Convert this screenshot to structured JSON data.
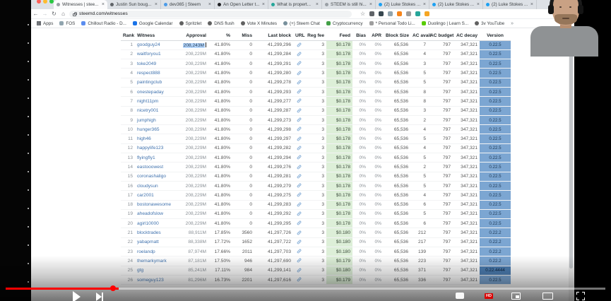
{
  "browser": {
    "tabs": [
      {
        "label": "Witnesses | stee...",
        "color": "#9aa0a6",
        "active": true
      },
      {
        "label": "Justin Sun boug...",
        "color": "#5f6368",
        "active": false
      },
      {
        "label": "dev365 | Steem",
        "color": "#4c9be8",
        "active": false
      },
      {
        "label": "An Open Letter t...",
        "color": "#202124",
        "active": false
      },
      {
        "label": "What is propert...",
        "color": "#26a69a",
        "active": false
      },
      {
        "label": "STEEM is still hi...",
        "color": "#9aa0a6",
        "active": false
      },
      {
        "label": "(2) Luke Stokes ...",
        "color": "#1da1f2",
        "active": false
      },
      {
        "label": "(2) Luke Stokes ...",
        "color": "#1da1f2",
        "active": false
      },
      {
        "label": "(2) Luke Stokes ...",
        "color": "#1da1f2",
        "active": false
      }
    ],
    "nav": {
      "url": "steemd.com/witnesses"
    },
    "extensions": [
      {
        "name": "eye-extension-icon",
        "color": "#5f6368"
      },
      {
        "name": "v-extension-icon",
        "color": "#37474f"
      },
      {
        "name": "bird-extension-icon",
        "color": "#90a4ae"
      },
      {
        "name": "fox-extension-icon",
        "color": "#f6851b"
      },
      {
        "name": "gray-extension-icon",
        "color": "#9e9e9e"
      },
      {
        "name": "teal-extension-icon",
        "color": "#26a69a"
      },
      {
        "name": "yellow-extension-icon",
        "color": "#f5a623"
      }
    ],
    "bookmarks": [
      {
        "label": "Apps",
        "icon": "grid",
        "color": "#5f6368"
      },
      {
        "label": "FOS",
        "icon": "square",
        "color": "#90a4ae"
      },
      {
        "label": "Chillout Radio - D...",
        "icon": "square",
        "color": "#5b8def"
      },
      {
        "label": "Google Calendar",
        "icon": "square",
        "color": "#1a73e8"
      },
      {
        "label": "Spritzlet",
        "icon": "globe",
        "color": "#616161"
      },
      {
        "label": "DNS flush",
        "icon": "globe",
        "color": "#616161"
      },
      {
        "label": "Vote X Minutes",
        "icon": "globe",
        "color": "#616161"
      },
      {
        "label": "(+) Steem Chat",
        "icon": "globe",
        "color": "#78909c"
      },
      {
        "label": "Cryptocurrency",
        "icon": "square",
        "color": "#43a047"
      },
      {
        "label": "* Personal Todo Li...",
        "icon": "square",
        "color": "#9e9e9e"
      },
      {
        "label": "Duolingo | Learn S...",
        "icon": "square",
        "color": "#58cc02"
      },
      {
        "label": "3v YouTube",
        "icon": "globe",
        "color": "#616161"
      }
    ]
  },
  "table": {
    "columns": [
      "Rank",
      "Witness",
      "Approval",
      "%",
      "Miss",
      "Last block",
      "URL",
      "Reg fee",
      "Feed",
      "Bias",
      "APR",
      "Block Size",
      "AC avail",
      "AC budget",
      "AC decay",
      "Version"
    ],
    "rows": [
      {
        "rank": "1",
        "witness": "goodguy24",
        "approval": "208,243M",
        "pct": "41.80%",
        "miss": "0",
        "last_block": "41,299,296",
        "reg_fee": "3",
        "feed": "$0.178",
        "bias": "0%",
        "apr": "0%",
        "block_size": "65,536",
        "ac_avail": "7",
        "ac_budget": "797",
        "ac_decay": "347,321",
        "version": "0.22.5",
        "selected": true
      },
      {
        "rank": "2",
        "witness": "waitforyou1",
        "approval": "208,229M",
        "pct": "41.80%",
        "miss": "0",
        "last_block": "41,299,284",
        "reg_fee": "3",
        "feed": "$0.178",
        "bias": "0%",
        "apr": "0%",
        "block_size": "65,536",
        "ac_avail": "4",
        "ac_budget": "797",
        "ac_decay": "347,321",
        "version": "0.22.5"
      },
      {
        "rank": "3",
        "witness": "toke2049",
        "approval": "208,229M",
        "pct": "41.80%",
        "miss": "0",
        "last_block": "41,299,291",
        "reg_fee": "3",
        "feed": "$0.178",
        "bias": "0%",
        "apr": "0%",
        "block_size": "65,536",
        "ac_avail": "3",
        "ac_budget": "797",
        "ac_decay": "347,321",
        "version": "0.22.5"
      },
      {
        "rank": "4",
        "witness": "respect888",
        "approval": "208,229M",
        "pct": "41.80%",
        "miss": "0",
        "last_block": "41,299,280",
        "reg_fee": "3",
        "feed": "$0.178",
        "bias": "0%",
        "apr": "0%",
        "block_size": "65,536",
        "ac_avail": "5",
        "ac_budget": "797",
        "ac_decay": "347,321",
        "version": "0.22.5"
      },
      {
        "rank": "5",
        "witness": "paintingclub",
        "approval": "208,229M",
        "pct": "41.80%",
        "miss": "0",
        "last_block": "41,299,278",
        "reg_fee": "3",
        "feed": "$0.178",
        "bias": "0%",
        "apr": "0%",
        "block_size": "65,536",
        "ac_avail": "5",
        "ac_budget": "797",
        "ac_decay": "347,321",
        "version": "0.22.5"
      },
      {
        "rank": "6",
        "witness": "onestepaday",
        "approval": "208,229M",
        "pct": "41.80%",
        "miss": "0",
        "last_block": "41,299,293",
        "reg_fee": "3",
        "feed": "$0.178",
        "bias": "0%",
        "apr": "0%",
        "block_size": "65,536",
        "ac_avail": "8",
        "ac_budget": "797",
        "ac_decay": "347,321",
        "version": "0.22.5"
      },
      {
        "rank": "7",
        "witness": "night11pm",
        "approval": "208,229M",
        "pct": "41.80%",
        "miss": "0",
        "last_block": "41,299,277",
        "reg_fee": "3",
        "feed": "$0.178",
        "bias": "0%",
        "apr": "0%",
        "block_size": "65,536",
        "ac_avail": "8",
        "ac_budget": "797",
        "ac_decay": "347,321",
        "version": "0.22.5"
      },
      {
        "rank": "8",
        "witness": "nicetry001",
        "approval": "208,229M",
        "pct": "41.80%",
        "miss": "0",
        "last_block": "41,299,287",
        "reg_fee": "3",
        "feed": "$0.178",
        "bias": "0%",
        "apr": "0%",
        "block_size": "65,536",
        "ac_avail": "3",
        "ac_budget": "797",
        "ac_decay": "347,321",
        "version": "0.22.5"
      },
      {
        "rank": "9",
        "witness": "jumphigh",
        "approval": "208,229M",
        "pct": "41.80%",
        "miss": "0",
        "last_block": "41,299,273",
        "reg_fee": "3",
        "feed": "$0.178",
        "bias": "0%",
        "apr": "0%",
        "block_size": "65,536",
        "ac_avail": "2",
        "ac_budget": "797",
        "ac_decay": "347,321",
        "version": "0.22.5"
      },
      {
        "rank": "10",
        "witness": "hunger365",
        "approval": "208,229M",
        "pct": "41.80%",
        "miss": "0",
        "last_block": "41,299,298",
        "reg_fee": "3",
        "feed": "$0.178",
        "bias": "0%",
        "apr": "0%",
        "block_size": "65,536",
        "ac_avail": "4",
        "ac_budget": "797",
        "ac_decay": "347,321",
        "version": "0.22.5"
      },
      {
        "rank": "11",
        "witness": "high46",
        "approval": "208,229M",
        "pct": "41.80%",
        "miss": "0",
        "last_block": "41,299,297",
        "reg_fee": "3",
        "feed": "$0.178",
        "bias": "0%",
        "apr": "0%",
        "block_size": "65,536",
        "ac_avail": "5",
        "ac_budget": "797",
        "ac_decay": "347,321",
        "version": "0.22.5"
      },
      {
        "rank": "12",
        "witness": "happylife123",
        "approval": "208,229M",
        "pct": "41.80%",
        "miss": "0",
        "last_block": "41,299,282",
        "reg_fee": "3",
        "feed": "$0.178",
        "bias": "0%",
        "apr": "0%",
        "block_size": "65,536",
        "ac_avail": "4",
        "ac_budget": "797",
        "ac_decay": "347,321",
        "version": "0.22.5"
      },
      {
        "rank": "13",
        "witness": "flyingfly1",
        "approval": "208,229M",
        "pct": "41.80%",
        "miss": "0",
        "last_block": "41,299,294",
        "reg_fee": "3",
        "feed": "$0.178",
        "bias": "0%",
        "apr": "0%",
        "block_size": "65,536",
        "ac_avail": "5",
        "ac_budget": "797",
        "ac_decay": "347,321",
        "version": "0.22.5"
      },
      {
        "rank": "14",
        "witness": "eastooowest",
        "approval": "208,229M",
        "pct": "41.80%",
        "miss": "0",
        "last_block": "41,299,276",
        "reg_fee": "3",
        "feed": "$0.178",
        "bias": "0%",
        "apr": "0%",
        "block_size": "65,536",
        "ac_avail": "2",
        "ac_budget": "797",
        "ac_decay": "347,321",
        "version": "0.22.5"
      },
      {
        "rank": "15",
        "witness": "coronashaligo",
        "approval": "208,229M",
        "pct": "41.80%",
        "miss": "0",
        "last_block": "41,299,281",
        "reg_fee": "3",
        "feed": "$0.178",
        "bias": "0%",
        "apr": "0%",
        "block_size": "65,536",
        "ac_avail": "5",
        "ac_budget": "797",
        "ac_decay": "347,321",
        "version": "0.22.5"
      },
      {
        "rank": "16",
        "witness": "cloudysun",
        "approval": "208,229M",
        "pct": "41.80%",
        "miss": "0",
        "last_block": "41,299,279",
        "reg_fee": "3",
        "feed": "$0.178",
        "bias": "0%",
        "apr": "0%",
        "block_size": "65,536",
        "ac_avail": "5",
        "ac_budget": "797",
        "ac_decay": "347,321",
        "version": "0.22.5"
      },
      {
        "rank": "17",
        "witness": "car2001",
        "approval": "208,229M",
        "pct": "41.80%",
        "miss": "0",
        "last_block": "41,299,275",
        "reg_fee": "3",
        "feed": "$0.178",
        "bias": "0%",
        "apr": "0%",
        "block_size": "65,536",
        "ac_avail": "4",
        "ac_budget": "797",
        "ac_decay": "347,321",
        "version": "0.22.5"
      },
      {
        "rank": "18",
        "witness": "bostonawesome",
        "approval": "208,229M",
        "pct": "41.80%",
        "miss": "0",
        "last_block": "41,299,283",
        "reg_fee": "3",
        "feed": "$0.178",
        "bias": "0%",
        "apr": "0%",
        "block_size": "65,536",
        "ac_avail": "6",
        "ac_budget": "797",
        "ac_decay": "347,321",
        "version": "0.22.5"
      },
      {
        "rank": "19",
        "witness": "aheadofslow",
        "approval": "208,229M",
        "pct": "41.80%",
        "miss": "0",
        "last_block": "41,299,292",
        "reg_fee": "3",
        "feed": "$0.178",
        "bias": "0%",
        "apr": "0%",
        "block_size": "65,536",
        "ac_avail": "5",
        "ac_budget": "797",
        "ac_decay": "347,321",
        "version": "0.22.5"
      },
      {
        "rank": "20",
        "witness": "agirl10000",
        "approval": "208,229M",
        "pct": "41.80%",
        "miss": "0",
        "last_block": "41,299,295",
        "reg_fee": "3",
        "feed": "$0.178",
        "bias": "0%",
        "apr": "0%",
        "block_size": "65,536",
        "ac_avail": "6",
        "ac_budget": "797",
        "ac_decay": "347,321",
        "version": "0.22.5"
      },
      {
        "rank": "21",
        "witness": "blocktrades",
        "approval": "88,911M",
        "pct": "17.85%",
        "miss": "3560",
        "last_block": "41,297,726",
        "reg_fee": "3",
        "feed": "$0.180",
        "bias": "0%",
        "apr": "0%",
        "block_size": "65,536",
        "ac_avail": "212",
        "ac_budget": "797",
        "ac_decay": "347,321",
        "version": "0.22.2"
      },
      {
        "rank": "22",
        "witness": "yabapmatt",
        "approval": "88,338M",
        "pct": "17.72%",
        "miss": "1652",
        "last_block": "41,297,722",
        "reg_fee": "3",
        "feed": "$0.180",
        "bias": "0%",
        "apr": "0%",
        "block_size": "65,536",
        "ac_avail": "217",
        "ac_budget": "797",
        "ac_decay": "347,321",
        "version": "0.22.2"
      },
      {
        "rank": "23",
        "witness": "roelandp",
        "approval": "87,974M",
        "pct": "17.66%",
        "miss": "2011",
        "last_block": "41,297,703",
        "reg_fee": "3",
        "feed": "$0.180",
        "bias": "0%",
        "apr": "0%",
        "block_size": "65,536",
        "ac_avail": "139",
        "ac_budget": "797",
        "ac_decay": "347,321",
        "version": "0.22.2"
      },
      {
        "rank": "24",
        "witness": "themarkymark",
        "approval": "87,181M",
        "pct": "17.50%",
        "miss": "946",
        "last_block": "41,297,690",
        "reg_fee": "3",
        "feed": "$0.179",
        "bias": "0%",
        "apr": "0%",
        "block_size": "65,536",
        "ac_avail": "223",
        "ac_budget": "797",
        "ac_decay": "347,321",
        "version": "0.22.2"
      },
      {
        "rank": "25",
        "witness": "gtg",
        "approval": "85,241M",
        "pct": "17.11%",
        "miss": "984",
        "last_block": "41,299,141",
        "reg_fee": "3",
        "feed": "$0.180",
        "bias": "0%",
        "apr": "0%",
        "block_size": "65,536",
        "ac_avail": "371",
        "ac_budget": "797",
        "ac_decay": "347,321",
        "version": "0.22.4444",
        "version_dark": true
      },
      {
        "rank": "26",
        "witness": "someguy123",
        "approval": "81,296M",
        "pct": "16.73%",
        "miss": "2201",
        "last_block": "41,297,616",
        "reg_fee": "3",
        "feed": "$0.179",
        "bias": "0%",
        "apr": "0%",
        "block_size": "65,536",
        "ac_avail": "336",
        "ac_budget": "797",
        "ac_decay": "347,321",
        "version": "0.22.5"
      }
    ]
  },
  "player": {
    "hd_badge": "HD"
  }
}
